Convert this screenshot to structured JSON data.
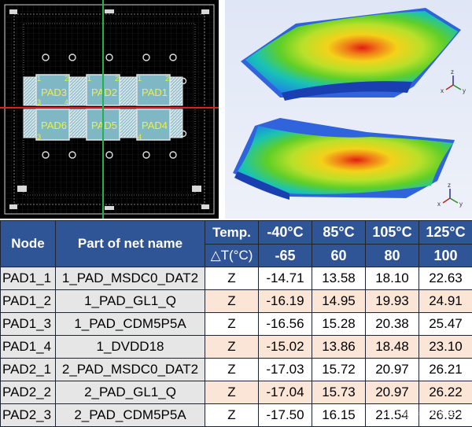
{
  "layout_panel": {
    "pads": [
      {
        "label": "PAD3",
        "id": "pad3"
      },
      {
        "label": "PAD2",
        "id": "pad2"
      },
      {
        "label": "PAD1",
        "id": "pad1"
      },
      {
        "label": "PAD6",
        "id": "pad6"
      },
      {
        "label": "PAD5",
        "id": "pad5"
      },
      {
        "label": "PAD4",
        "id": "pad4"
      }
    ],
    "corner_marks": [
      "1",
      "2",
      "3",
      "4"
    ],
    "colors": {
      "background": "#000000",
      "pad_label": "#f2ef3a",
      "crosshair_h": "#e02020",
      "crosshair_v": "#22b14c",
      "pad_fill": "#7fb7c4"
    }
  },
  "sim_panel": {
    "axis_labels": [
      "z",
      "y",
      "x"
    ],
    "colors": {
      "hot": "#e01e10",
      "warm": "#f07a18",
      "mid": "#f3d21a",
      "green": "#5fcf28",
      "cool": "#19c3b4",
      "cold": "#1c54d8"
    }
  },
  "table": {
    "headers": {
      "node": "Node",
      "net": "Part of net name",
      "temp": "Temp.",
      "delta": "△T(°C)",
      "temps": [
        "-40°C",
        "85°C",
        "105°C",
        "125°C"
      ],
      "deltas": [
        "-65",
        "60",
        "80",
        "100"
      ]
    },
    "rows": [
      {
        "node": "PAD1_1",
        "net": "1_PAD_MSDC0_DAT2",
        "dir": "Z",
        "values": [
          "-14.71",
          "13.58",
          "18.10",
          "22.63"
        ]
      },
      {
        "node": "PAD1_2",
        "net": "1_PAD_GL1_Q",
        "dir": "Z",
        "values": [
          "-16.19",
          "14.95",
          "19.93",
          "24.91"
        ]
      },
      {
        "node": "PAD1_3",
        "net": "1_PAD_CDM5P5A",
        "dir": "Z",
        "values": [
          "-16.56",
          "15.28",
          "20.38",
          "25.47"
        ]
      },
      {
        "node": "PAD1_4",
        "net": "1_DVDD18",
        "dir": "Z",
        "values": [
          "-15.02",
          "13.86",
          "18.48",
          "23.10"
        ]
      },
      {
        "node": "PAD2_1",
        "net": "2_PAD_MSDC0_DAT2",
        "dir": "Z",
        "values": [
          "-17.03",
          "15.72",
          "20.97",
          "26.21"
        ]
      },
      {
        "node": "PAD2_2",
        "net": "2_PAD_GL1_Q",
        "dir": "Z",
        "values": [
          "-17.04",
          "15.73",
          "20.97",
          "26.22"
        ]
      },
      {
        "node": "PAD2_3",
        "net": "2_PAD_CDM5P5A",
        "dir": "Z",
        "values": [
          "-17.50",
          "16.15",
          "21.54",
          "26.92"
        ]
      }
    ],
    "colors": {
      "header_bg": "#2f5597",
      "header_fg": "#ffffff",
      "label_bg": "#e6e6e6",
      "highlight": "#fbe5d6"
    }
  },
  "watermark": "公众号 · 泰丰瑞电子"
}
